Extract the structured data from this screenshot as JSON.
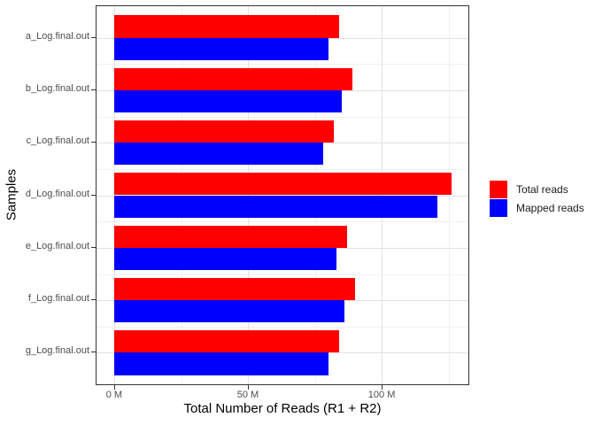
{
  "chart_data": {
    "type": "bar",
    "orientation": "horizontal",
    "title": "",
    "xlabel": "Total Number of Reads (R1 + R2)",
    "ylabel": "Samples",
    "categories": [
      "a_Log.final.out",
      "b_Log.final.out",
      "c_Log.final.out",
      "d_Log.final.out",
      "e_Log.final.out",
      "f_Log.final.out",
      "g_Log.final.out"
    ],
    "series": [
      {
        "name": "Total reads",
        "color": "#FF0000",
        "values": [
          84,
          89,
          82,
          126,
          87,
          90,
          84
        ]
      },
      {
        "name": "Mapped reads",
        "color": "#0000FF",
        "values": [
          80,
          85,
          78,
          121,
          83,
          86,
          80
        ]
      }
    ],
    "value_unit": "M",
    "x_ticks": [
      {
        "value": 0,
        "label": "0 M"
      },
      {
        "value": 50,
        "label": "50 M"
      },
      {
        "value": 100,
        "label": "100 M"
      }
    ],
    "x_minor_ticks": [
      25,
      75,
      125
    ],
    "xlim": [
      0,
      126
    ],
    "grid": true,
    "legend_position": "right"
  },
  "colors": {
    "bar_total": "#FF0000",
    "bar_mapped": "#0000FF",
    "panel_border": "#333333",
    "grid_major": "#e2e2e2",
    "grid_minor": "#f0f0f0",
    "tick_label": "#4d4d4d"
  }
}
